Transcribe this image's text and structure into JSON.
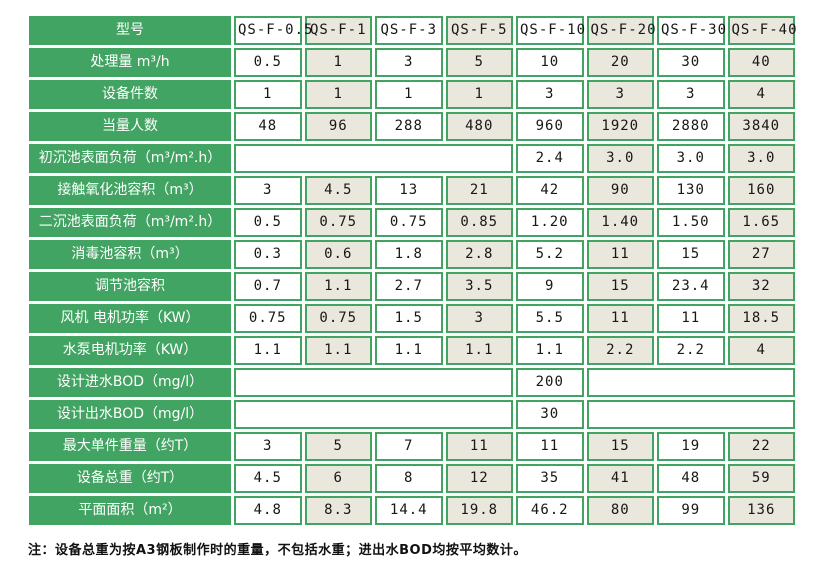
{
  "colors": {
    "green": "#42a463",
    "beige": "#eae8dc",
    "white": "#ffffff",
    "value_text": "#171717",
    "label_text": "#ffffff"
  },
  "table": {
    "corner_label": "型号",
    "models": [
      "QS-F-0.5",
      "QS-F-1",
      "QS-F-3",
      "QS-F-5",
      "QS-F-10",
      "QS-F-20",
      "QS-F-30",
      "QS-F-40"
    ],
    "rows": [
      {
        "label": "处理量 m³/h",
        "cells": [
          {
            "v": "0.5"
          },
          {
            "v": "1"
          },
          {
            "v": "3"
          },
          {
            "v": "5"
          },
          {
            "v": "10"
          },
          {
            "v": "20"
          },
          {
            "v": "30"
          },
          {
            "v": "40"
          }
        ]
      },
      {
        "label": "设备件数",
        "cells": [
          {
            "v": "1"
          },
          {
            "v": "1"
          },
          {
            "v": "1"
          },
          {
            "v": "1"
          },
          {
            "v": "3"
          },
          {
            "v": "3"
          },
          {
            "v": "3"
          },
          {
            "v": "4"
          }
        ]
      },
      {
        "label": "当量人数",
        "cells": [
          {
            "v": "48"
          },
          {
            "v": "96"
          },
          {
            "v": "288"
          },
          {
            "v": "480"
          },
          {
            "v": "960"
          },
          {
            "v": "1920"
          },
          {
            "v": "2880"
          },
          {
            "v": "3840"
          }
        ]
      },
      {
        "label": "初沉池表面负荷（m³/m².h）",
        "cells": [
          {
            "v": "",
            "span": 4
          },
          {
            "v": "2.4"
          },
          {
            "v": "3.0"
          },
          {
            "v": "3.0"
          },
          {
            "v": "3.0"
          }
        ]
      },
      {
        "label": "接触氧化池容积（m³）",
        "cells": [
          {
            "v": "3"
          },
          {
            "v": "4.5"
          },
          {
            "v": "13"
          },
          {
            "v": "21"
          },
          {
            "v": "42"
          },
          {
            "v": "90"
          },
          {
            "v": "130"
          },
          {
            "v": "160"
          }
        ]
      },
      {
        "label": "二沉池表面负荷（m³/m².h）",
        "cells": [
          {
            "v": "0.5"
          },
          {
            "v": "0.75"
          },
          {
            "v": "0.75"
          },
          {
            "v": "0.85"
          },
          {
            "v": "1.20"
          },
          {
            "v": "1.40"
          },
          {
            "v": "1.50"
          },
          {
            "v": "1.65"
          }
        ]
      },
      {
        "label": "消毒池容积（m³）",
        "cells": [
          {
            "v": "0.3"
          },
          {
            "v": "0.6"
          },
          {
            "v": "1.8"
          },
          {
            "v": "2.8"
          },
          {
            "v": "5.2"
          },
          {
            "v": "11"
          },
          {
            "v": "15"
          },
          {
            "v": "27"
          }
        ]
      },
      {
        "label": "调节池容积",
        "cells": [
          {
            "v": "0.7"
          },
          {
            "v": "1.1"
          },
          {
            "v": "2.7"
          },
          {
            "v": "3.5"
          },
          {
            "v": "9"
          },
          {
            "v": "15"
          },
          {
            "v": "23.4"
          },
          {
            "v": "32"
          }
        ]
      },
      {
        "label": "风机 电机功率（KW）",
        "cells": [
          {
            "v": "0.75"
          },
          {
            "v": "0.75"
          },
          {
            "v": "1.5"
          },
          {
            "v": "3"
          },
          {
            "v": "5.5"
          },
          {
            "v": "11"
          },
          {
            "v": "11"
          },
          {
            "v": "18.5"
          }
        ]
      },
      {
        "label": "水泵电机功率（KW）",
        "cells": [
          {
            "v": "1.1"
          },
          {
            "v": "1.1"
          },
          {
            "v": "1.1"
          },
          {
            "v": "1.1"
          },
          {
            "v": "1.1"
          },
          {
            "v": "2.2"
          },
          {
            "v": "2.2"
          },
          {
            "v": "4"
          }
        ]
      },
      {
        "label": "设计进水BOD（mg/l）",
        "cells": [
          {
            "v": "",
            "span": 4
          },
          {
            "v": "200"
          },
          {
            "v": "",
            "span": 3
          }
        ]
      },
      {
        "label": "设计出水BOD（mg/l）",
        "cells": [
          {
            "v": "",
            "span": 4
          },
          {
            "v": "30"
          },
          {
            "v": "",
            "span": 3
          }
        ]
      },
      {
        "label": "最大单件重量（约T）",
        "cells": [
          {
            "v": "3"
          },
          {
            "v": "5"
          },
          {
            "v": "7"
          },
          {
            "v": "11"
          },
          {
            "v": "11"
          },
          {
            "v": "15"
          },
          {
            "v": "19"
          },
          {
            "v": "22"
          }
        ]
      },
      {
        "label": "设备总重（约T）",
        "cells": [
          {
            "v": "4.5"
          },
          {
            "v": "6"
          },
          {
            "v": "8"
          },
          {
            "v": "12"
          },
          {
            "v": "35"
          },
          {
            "v": "41"
          },
          {
            "v": "48"
          },
          {
            "v": "59"
          }
        ]
      },
      {
        "label": "平面面积（m²）",
        "cells": [
          {
            "v": "4.8"
          },
          {
            "v": "8.3"
          },
          {
            "v": "14.4"
          },
          {
            "v": "19.8"
          },
          {
            "v": "46.2"
          },
          {
            "v": "80"
          },
          {
            "v": "99"
          },
          {
            "v": "136"
          }
        ]
      }
    ]
  },
  "note": "注：设备总重为按A3钢板制作时的重量，不包括水重；进出水BOD均按平均数计。"
}
